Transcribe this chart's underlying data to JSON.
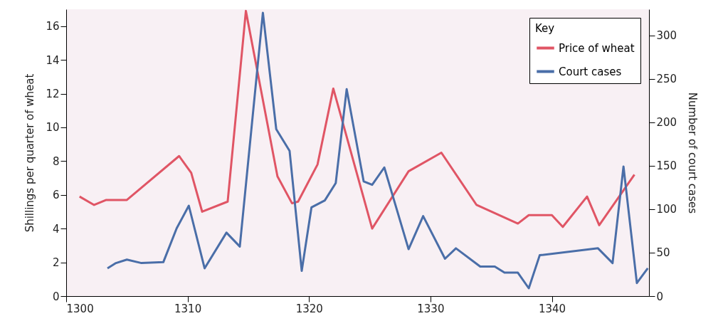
{
  "chart_data": {
    "type": "line",
    "xlabel": null,
    "ylabel": "Shillings per quarter of wheat",
    "y2label": "Number of court cases",
    "legend_title": "Key",
    "legend": "top right",
    "grid": false,
    "xlim": [
      1300,
      1348
    ],
    "xticks": [
      1300,
      1310,
      1320,
      1330,
      1340
    ],
    "ylim": [
      0,
      17
    ],
    "yticks": [
      0,
      2,
      4,
      6,
      8,
      10,
      12,
      14,
      16
    ],
    "y2lim": [
      0,
      330
    ],
    "y2ticks": [
      0,
      50,
      100,
      150,
      200,
      250,
      300
    ],
    "series": [
      {
        "name": "Price of wheat",
        "color": "#e05565",
        "x": [
          1301.1,
          1302.3,
          1303.3,
          1304.1,
          1305,
          1309.3,
          1310.3,
          1311.2,
          1313.3,
          1314.8,
          1317.4,
          1318.6,
          1319.1,
          1320.7,
          1322,
          1325.2,
          1328.2,
          1330.9,
          1333.8,
          1337.2,
          1338.1,
          1340,
          1340.9,
          1342.9,
          1343.9,
          1346.8
        ],
        "values": [
          5.9,
          5.4,
          5.7,
          5.7,
          5.7,
          8.3,
          7.3,
          5,
          5.6,
          16.9,
          7.1,
          5.5,
          5.6,
          7.8,
          12.3,
          4,
          7.4,
          8.5,
          5.4,
          4.3,
          4.8,
          4.8,
          4.1,
          5.9,
          4.2,
          7.2
        ]
      },
      {
        "name": "Court cases",
        "color": "#4a6ea8",
        "axis": "y2",
        "x": [
          1303.4,
          1304.1,
          1305,
          1306.2,
          1308,
          1309.1,
          1310.1,
          1311.4,
          1313.2,
          1314.3,
          1316.2,
          1317.3,
          1318.4,
          1319.4,
          1320.2,
          1321.3,
          1322.2,
          1323.1,
          1324.5,
          1325.2,
          1326.2,
          1328.2,
          1329.4,
          1331.2,
          1332.1,
          1334.1,
          1335.3,
          1336.1,
          1337.2,
          1338.1,
          1339,
          1343.8,
          1345,
          1345.9,
          1347,
          1347.9
        ],
        "values": [
          32,
          38,
          42,
          38,
          39,
          78,
          104,
          32,
          73,
          57,
          326,
          192,
          167,
          29,
          102,
          110,
          130,
          238,
          132,
          128,
          148,
          54,
          92,
          43,
          55,
          34,
          34,
          27,
          27,
          9,
          47,
          55,
          38,
          149,
          15,
          32
        ]
      }
    ]
  }
}
